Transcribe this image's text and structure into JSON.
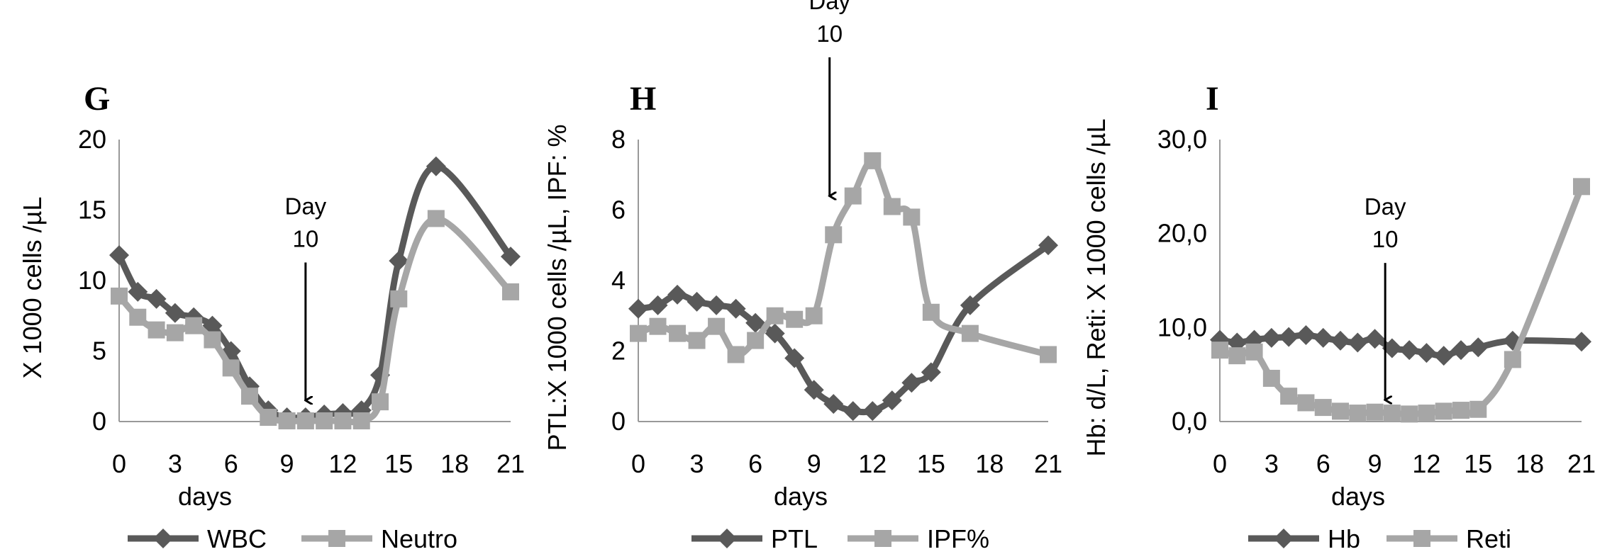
{
  "chart_data": [
    {
      "type": "line",
      "panel_label": "G",
      "xlabel": "days",
      "ylabel": "X 1000 cells /µL",
      "xlim": [
        0,
        21
      ],
      "ylim": [
        0,
        20
      ],
      "xticks": [
        "0",
        "3",
        "6",
        "9",
        "12",
        "15",
        "18",
        "21"
      ],
      "yticks": [
        "0",
        "5",
        "10",
        "15",
        "20"
      ],
      "grid": false,
      "legend": "bottom",
      "annotation": {
        "line1": "Day",
        "line2": "10",
        "x": 10,
        "y_tip": 1.5,
        "label_y": 14.7
      },
      "series": [
        {
          "name": "WBC",
          "marker": "diamond",
          "color": "#595959",
          "points": [
            [
              0,
              11.8
            ],
            [
              1,
              9.2
            ],
            [
              2,
              8.7
            ],
            [
              3,
              7.7
            ],
            [
              4,
              7.4
            ],
            [
              5,
              6.8
            ],
            [
              6,
              5.0
            ],
            [
              7,
              2.5
            ],
            [
              8,
              0.8
            ],
            [
              9,
              0.3
            ],
            [
              10,
              0.3
            ],
            [
              11,
              0.5
            ],
            [
              12,
              0.6
            ],
            [
              13,
              0.8
            ],
            [
              14,
              3.3
            ],
            [
              15,
              11.4
            ],
            [
              17,
              18.1
            ],
            [
              21,
              11.7
            ]
          ]
        },
        {
          "name": "Neutro",
          "marker": "square",
          "color": "#a6a6a6",
          "points": [
            [
              0,
              8.9
            ],
            [
              1,
              7.4
            ],
            [
              2,
              6.5
            ],
            [
              3,
              6.3
            ],
            [
              4,
              6.8
            ],
            [
              5,
              5.8
            ],
            [
              6,
              3.8
            ],
            [
              7,
              1.8
            ],
            [
              8,
              0.3
            ],
            [
              9,
              0.05
            ],
            [
              10,
              0.05
            ],
            [
              11,
              0.05
            ],
            [
              12,
              0.05
            ],
            [
              13,
              0.05
            ],
            [
              14,
              1.4
            ],
            [
              15,
              8.7
            ],
            [
              17,
              14.4
            ],
            [
              21,
              9.2
            ]
          ]
        }
      ]
    },
    {
      "type": "line",
      "panel_label": "H",
      "xlabel": "days",
      "ylabel": "PTL:X 1000 cells /µL, IPF: %",
      "xlim": [
        0,
        21
      ],
      "ylim": [
        0,
        8
      ],
      "xticks": [
        "0",
        "3",
        "6",
        "9",
        "12",
        "15",
        "18",
        "21"
      ],
      "yticks": [
        "0",
        "2",
        "4",
        "6",
        "8"
      ],
      "grid": false,
      "legend": "bottom",
      "annotation": {
        "line1": "Day",
        "line2": "10",
        "x": 9.8,
        "y_tip": 6.4,
        "label_y": 11.7
      },
      "series": [
        {
          "name": "PTL",
          "marker": "diamond",
          "color": "#595959",
          "points": [
            [
              0,
              3.2
            ],
            [
              1,
              3.3
            ],
            [
              2,
              3.6
            ],
            [
              3,
              3.4
            ],
            [
              4,
              3.3
            ],
            [
              5,
              3.2
            ],
            [
              6,
              2.8
            ],
            [
              7,
              2.5
            ],
            [
              8,
              1.8
            ],
            [
              9,
              0.9
            ],
            [
              10,
              0.5
            ],
            [
              11,
              0.3
            ],
            [
              12,
              0.3
            ],
            [
              13,
              0.6
            ],
            [
              14,
              1.1
            ],
            [
              15,
              1.4
            ],
            [
              17,
              3.3
            ],
            [
              21,
              5.0
            ]
          ]
        },
        {
          "name": "IPF%",
          "marker": "square",
          "color": "#a6a6a6",
          "points": [
            [
              0,
              2.5
            ],
            [
              1,
              2.7
            ],
            [
              2,
              2.5
            ],
            [
              3,
              2.3
            ],
            [
              4,
              2.7
            ],
            [
              5,
              1.9
            ],
            [
              6,
              2.3
            ],
            [
              7,
              3.0
            ],
            [
              8,
              2.9
            ],
            [
              9,
              3.0
            ],
            [
              10,
              5.3
            ],
            [
              11,
              6.4
            ],
            [
              12,
              7.4
            ],
            [
              13,
              6.1
            ],
            [
              14,
              5.8
            ],
            [
              15,
              3.1
            ],
            [
              17,
              2.5
            ],
            [
              21,
              1.9
            ]
          ]
        }
      ]
    },
    {
      "type": "line",
      "panel_label": "I",
      "xlabel": "days",
      "ylabel": "Hb: d/L, Reti: X 1000 cells /µL",
      "xlim": [
        0,
        21
      ],
      "ylim": [
        0,
        30
      ],
      "xticks": [
        "0",
        "3",
        "6",
        "9",
        "12",
        "15",
        "18",
        "21"
      ],
      "yticks": [
        "0,0",
        "10,0",
        "20,0",
        "30,0"
      ],
      "grid": false,
      "legend": "bottom",
      "annotation": {
        "line1": "Day",
        "line2": "10",
        "x": 9.6,
        "y_tip": 2.3,
        "label_y": 22.0
      },
      "series": [
        {
          "name": "Hb",
          "marker": "diamond",
          "color": "#595959",
          "points": [
            [
              0,
              8.7
            ],
            [
              1,
              8.4
            ],
            [
              2,
              8.7
            ],
            [
              3,
              8.9
            ],
            [
              4,
              9.0
            ],
            [
              5,
              9.2
            ],
            [
              6,
              8.9
            ],
            [
              7,
              8.6
            ],
            [
              8,
              8.4
            ],
            [
              9,
              8.8
            ],
            [
              10,
              7.8
            ],
            [
              11,
              7.6
            ],
            [
              12,
              7.3
            ],
            [
              13,
              7.0
            ],
            [
              14,
              7.6
            ],
            [
              15,
              7.9
            ],
            [
              17,
              8.6
            ],
            [
              21,
              8.5
            ]
          ]
        },
        {
          "name": "Reti",
          "marker": "square",
          "color": "#a6a6a6",
          "points": [
            [
              0,
              7.6
            ],
            [
              1,
              7.0
            ],
            [
              2,
              7.4
            ],
            [
              3,
              4.6
            ],
            [
              4,
              2.7
            ],
            [
              5,
              2.0
            ],
            [
              6,
              1.5
            ],
            [
              7,
              1.1
            ],
            [
              8,
              0.9
            ],
            [
              9,
              1.0
            ],
            [
              10,
              0.9
            ],
            [
              11,
              0.8
            ],
            [
              12,
              0.9
            ],
            [
              13,
              1.1
            ],
            [
              14,
              1.2
            ],
            [
              15,
              1.3
            ],
            [
              17,
              6.6
            ],
            [
              21,
              25.0
            ]
          ]
        }
      ]
    }
  ]
}
